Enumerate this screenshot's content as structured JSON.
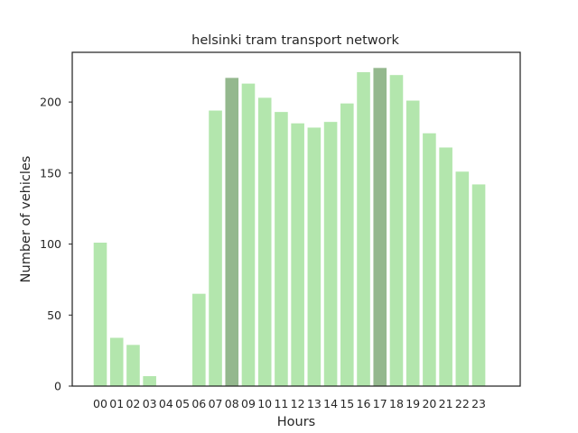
{
  "chart_data": {
    "type": "bar",
    "title": "helsinki tram transport network",
    "xlabel": "Hours",
    "ylabel": "Number of vehicles",
    "categories": [
      "00",
      "01",
      "02",
      "03",
      "04",
      "05",
      "06",
      "07",
      "08",
      "09",
      "10",
      "11",
      "12",
      "13",
      "14",
      "15",
      "16",
      "17",
      "18",
      "19",
      "20",
      "21",
      "22",
      "23"
    ],
    "values": [
      101,
      34,
      29,
      7,
      0,
      0,
      65,
      194,
      217,
      213,
      203,
      193,
      185,
      182,
      186,
      199,
      221,
      224,
      219,
      201,
      178,
      168,
      151,
      142
    ],
    "highlighted_categories": [
      "08",
      "17"
    ],
    "ylim": [
      0,
      235
    ],
    "yticks": [
      0,
      50,
      100,
      150,
      200
    ],
    "grid": false,
    "colors": {
      "bar": "#b3e6ad",
      "highlight": "#94b88e",
      "frame": "#262626",
      "text": "#262626"
    }
  }
}
